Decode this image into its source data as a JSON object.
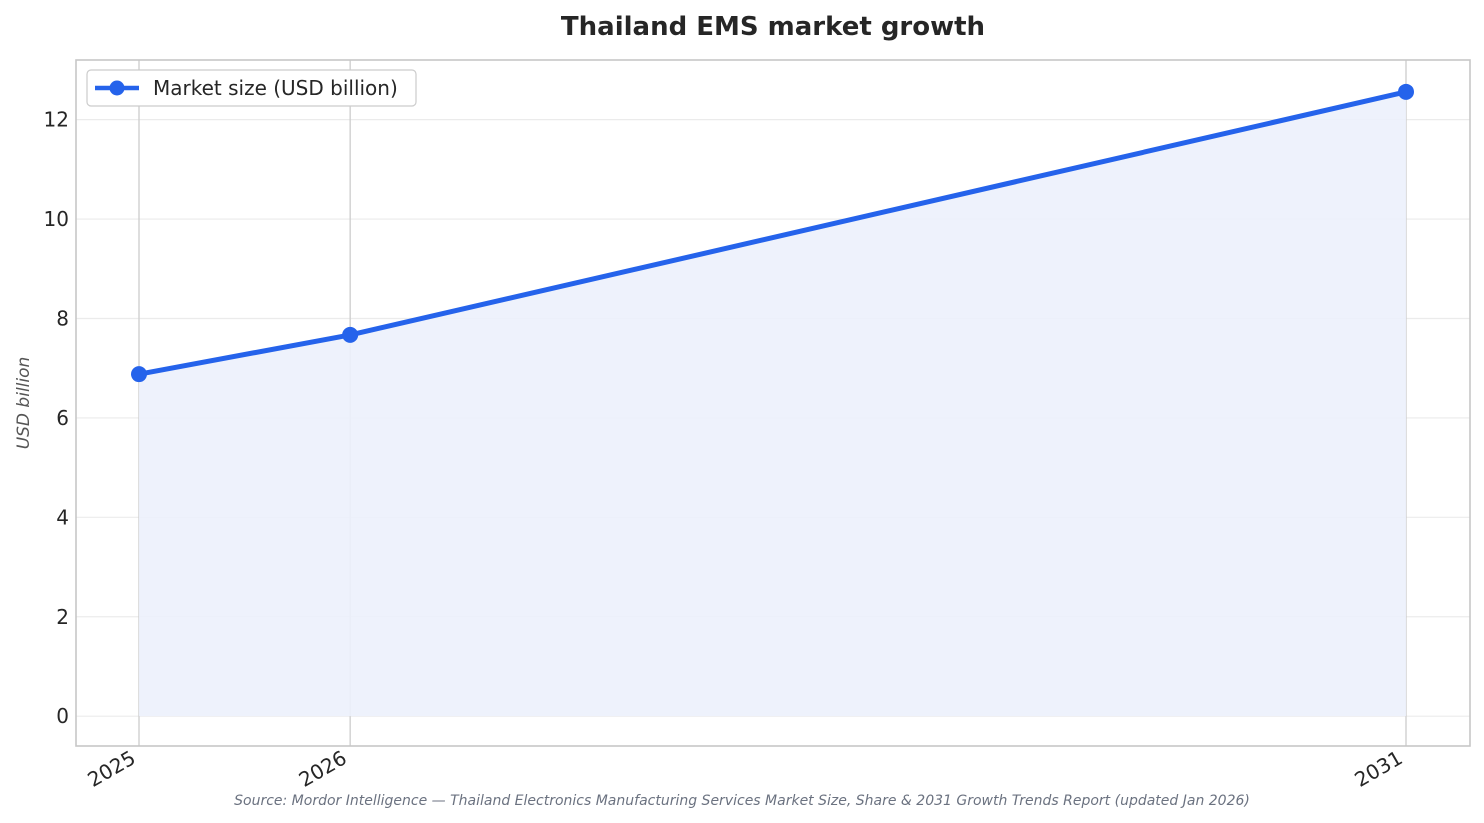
{
  "chart_data": {
    "type": "line",
    "title": "Thailand EMS market growth",
    "xlabel": "",
    "ylabel": "USD billion",
    "categories": [
      "2025",
      "2026",
      "2031"
    ],
    "x": [
      2025,
      2026,
      2031
    ],
    "series": [
      {
        "name": "Market size (USD billion)",
        "values": [
          6.88,
          7.67,
          12.56
        ]
      }
    ],
    "ylim": [
      -0.6,
      13.2
    ],
    "yticks": [
      0,
      2,
      4,
      6,
      8,
      10,
      12
    ],
    "ytick_labels": [
      "0",
      "2",
      "4",
      "6",
      "8",
      "10",
      "12"
    ],
    "grid": true,
    "area_fill": true,
    "legend_position": "top-left",
    "line_color": "#2563eb",
    "fill_color": "#ecf1fc"
  },
  "source": "Source: Mordor Intelligence — Thailand Electronics Manufacturing Services Market Size, Share & 2031 Growth Trends Report (updated Jan 2026)"
}
